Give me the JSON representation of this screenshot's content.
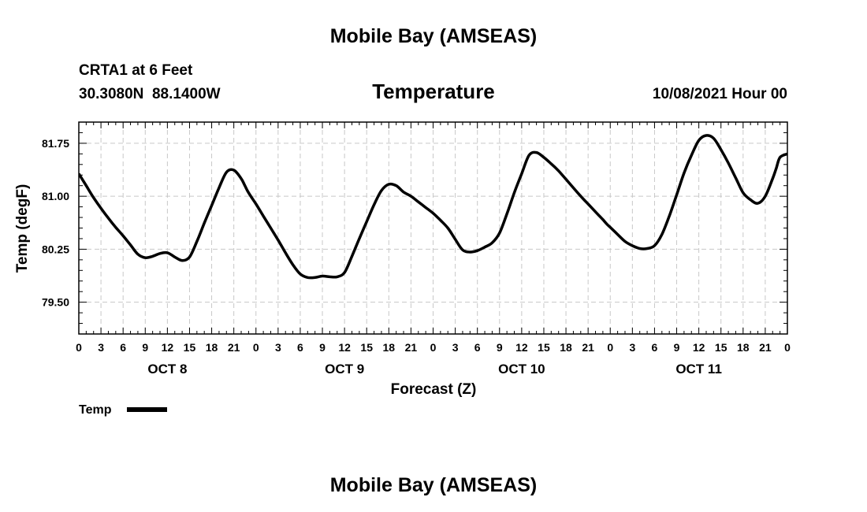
{
  "header": {
    "title": "Mobile Bay (AMSEAS)",
    "station": "CRTA1 at 6 Feet",
    "coords": "30.3080N  88.1400W",
    "variable": "Temperature",
    "datetime": "10/08/2021 Hour 00"
  },
  "footer": {
    "title": "Mobile Bay (AMSEAS)"
  },
  "chart_data": {
    "type": "line",
    "xlabel": "Forecast (Z)",
    "ylabel": "Temp (degF)",
    "x_unit": "hours since 10/08/2021 00Z",
    "xlim": [
      0,
      96
    ],
    "ylim": [
      79.05,
      82.05
    ],
    "y_ticks": [
      79.5,
      80.25,
      81.0,
      81.75
    ],
    "y_tick_labels": [
      "79.50",
      "80.25",
      "81.00",
      "81.75"
    ],
    "x_tick_labels": [
      "0",
      "3",
      "6",
      "9",
      "12",
      "15",
      "18",
      "21",
      "0",
      "3",
      "6",
      "9",
      "12",
      "15",
      "18",
      "21",
      "0",
      "3",
      "6",
      "9",
      "12",
      "15",
      "18",
      "21",
      "0",
      "3",
      "6",
      "9",
      "12",
      "15",
      "18",
      "21",
      "0"
    ],
    "day_labels": [
      {
        "label": "OCT 8",
        "hour": 12
      },
      {
        "label": "OCT 9",
        "hour": 36
      },
      {
        "label": "OCT 10",
        "hour": 60
      },
      {
        "label": "OCT 11",
        "hour": 84
      }
    ],
    "grid": true,
    "legend_position": "bottom-left",
    "series": [
      {
        "name": "Temp",
        "color": "#000000",
        "x": [
          0,
          1,
          2,
          3,
          4,
          5,
          6,
          7,
          8,
          9,
          10,
          11,
          12,
          13,
          14,
          15,
          16,
          17,
          18,
          19,
          20,
          21,
          22,
          22.5,
          23,
          24,
          25,
          26,
          27,
          28,
          29,
          30,
          31,
          32,
          33,
          34,
          35,
          36,
          37,
          38,
          39,
          40,
          41,
          42,
          43,
          44,
          45,
          46,
          46.5,
          47,
          48,
          49,
          50,
          51,
          52,
          53,
          54,
          55,
          56,
          57,
          58,
          59,
          60,
          61,
          62,
          63,
          64,
          65,
          66,
          67,
          68,
          69,
          70,
          71,
          71.5,
          72,
          73,
          74,
          75,
          76,
          77,
          78,
          79,
          80,
          81,
          82,
          83,
          84,
          85,
          86,
          87,
          88,
          89,
          90,
          91,
          92,
          93,
          94,
          94.5,
          95,
          96
        ],
        "values": [
          81.32,
          81.15,
          80.98,
          80.83,
          80.69,
          80.56,
          80.44,
          80.31,
          80.18,
          80.13,
          80.15,
          80.19,
          80.2,
          80.14,
          80.09,
          80.14,
          80.36,
          80.62,
          80.87,
          81.12,
          81.34,
          81.37,
          81.25,
          81.15,
          81.05,
          80.89,
          80.72,
          80.55,
          80.38,
          80.2,
          80.03,
          79.9,
          79.85,
          79.85,
          79.87,
          79.86,
          79.86,
          79.92,
          80.15,
          80.4,
          80.64,
          80.88,
          81.08,
          81.17,
          81.15,
          81.06,
          81.0,
          80.92,
          80.88,
          80.84,
          80.76,
          80.66,
          80.55,
          80.39,
          80.24,
          80.21,
          80.23,
          80.28,
          80.34,
          80.48,
          80.75,
          81.05,
          81.32,
          81.58,
          81.62,
          81.55,
          81.46,
          81.36,
          81.24,
          81.12,
          81.0,
          80.89,
          80.78,
          80.67,
          80.61,
          80.56,
          80.46,
          80.36,
          80.3,
          80.26,
          80.26,
          80.3,
          80.46,
          80.72,
          81.02,
          81.33,
          81.58,
          81.79,
          81.86,
          81.82,
          81.66,
          81.47,
          81.26,
          81.05,
          80.95,
          80.9,
          81.0,
          81.25,
          81.4,
          81.55,
          81.6
        ]
      }
    ]
  }
}
